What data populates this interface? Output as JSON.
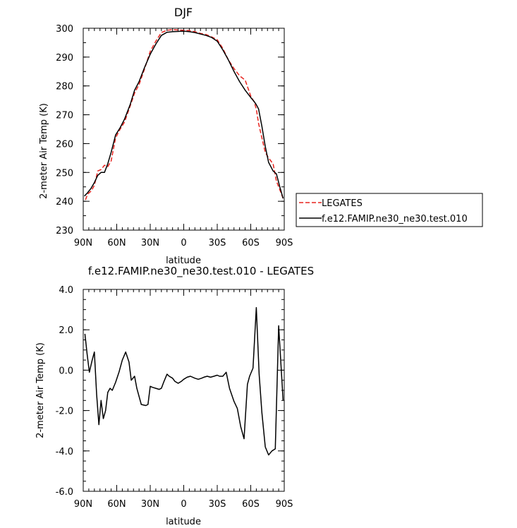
{
  "chart_data": [
    {
      "type": "line",
      "title": "DJF",
      "xlabel": "latitude",
      "ylabel": "2-meter Air Temp (K)",
      "xlim": [
        90,
        -90
      ],
      "ylim": [
        230,
        300
      ],
      "xticks": [
        {
          "v": 90,
          "label": "90N"
        },
        {
          "v": 60,
          "label": "60N"
        },
        {
          "v": 30,
          "label": "30N"
        },
        {
          "v": 0,
          "label": "0"
        },
        {
          "v": -30,
          "label": "30S"
        },
        {
          "v": -60,
          "label": "60S"
        },
        {
          "v": -90,
          "label": "90S"
        }
      ],
      "yticks": [
        "230",
        "240",
        "250",
        "260",
        "270",
        "280",
        "290",
        "300"
      ],
      "legend": {
        "placement": "right",
        "entries": [
          "LEGATES",
          "f.e12.FAMIP.ne30_ne30.test.010"
        ]
      },
      "series": [
        {
          "name": "LEGATES",
          "color": "#e8231e",
          "dash": "dashed",
          "x": [
            88,
            86,
            83,
            80,
            77,
            74,
            71,
            68,
            65,
            61,
            57,
            53,
            48,
            44,
            40,
            35,
            30,
            25,
            20,
            15,
            10,
            5,
            0,
            -5,
            -10,
            -15,
            -20,
            -25,
            -30,
            -35,
            -40,
            -45,
            -50,
            -55,
            -60,
            -63,
            -65,
            -67,
            -70,
            -73,
            -76,
            -80,
            -83,
            -86,
            -89
          ],
          "y": [
            240.5,
            242.5,
            243.5,
            245.5,
            250.5,
            251,
            252.5,
            252,
            254,
            262,
            265,
            267.5,
            273,
            277.5,
            280.5,
            286,
            292,
            295.5,
            298.5,
            299.3,
            299.5,
            299.4,
            299.3,
            299.2,
            298.8,
            298.2,
            297.8,
            297,
            296,
            293,
            289,
            286,
            283.5,
            282,
            276.5,
            274.5,
            272,
            267,
            262,
            257,
            255,
            253,
            247,
            244,
            241
          ]
        },
        {
          "name": "f.e12.FAMIP.ne30_ne30.test.010",
          "color": "#000000",
          "dash": "solid",
          "x": [
            89,
            86,
            83,
            80,
            77,
            74,
            71,
            68,
            65,
            61,
            57,
            53,
            48,
            44,
            40,
            35,
            30,
            25,
            20,
            15,
            10,
            5,
            0,
            -5,
            -10,
            -15,
            -20,
            -25,
            -30,
            -35,
            -40,
            -45,
            -50,
            -55,
            -60,
            -63,
            -65,
            -67,
            -70,
            -73,
            -76,
            -80,
            -83,
            -86,
            -89
          ],
          "y": [
            241.8,
            243,
            244.5,
            246.5,
            249,
            250,
            250,
            253,
            257,
            263,
            265.5,
            268.5,
            273.5,
            278.5,
            281.5,
            286.5,
            291,
            294.5,
            297.5,
            298.6,
            298.8,
            298.9,
            299,
            298.8,
            298.5,
            298,
            297.5,
            296.8,
            295.5,
            292.5,
            289,
            285,
            281.5,
            278.5,
            276,
            274.6,
            273.5,
            272,
            266,
            259,
            253.5,
            250.5,
            249.5,
            245,
            241
          ]
        }
      ]
    },
    {
      "type": "line",
      "title": "f.e12.FAMIP.ne30_ne30.test.010 - LEGATES",
      "xlabel": "latitude",
      "ylabel": "2-meter Air Temp (K)",
      "xlim": [
        90,
        -90
      ],
      "ylim": [
        -6,
        4
      ],
      "xticks": [
        {
          "v": 90,
          "label": "90N"
        },
        {
          "v": 60,
          "label": "60N"
        },
        {
          "v": 30,
          "label": "30N"
        },
        {
          "v": 0,
          "label": "0"
        },
        {
          "v": -30,
          "label": "30S"
        },
        {
          "v": -60,
          "label": "60S"
        },
        {
          "v": -90,
          "label": "90S"
        }
      ],
      "yticks": [
        "-6.0",
        "-4.0",
        "-2.0",
        "0.0",
        "2.0",
        "4.0"
      ],
      "series": [
        {
          "color": "#000000",
          "x": [
            88.5,
            86.5,
            84.5,
            82,
            80,
            78,
            76,
            74,
            72,
            70,
            68,
            66,
            64,
            61,
            58,
            55,
            52,
            49,
            47,
            44,
            42,
            38,
            34,
            32,
            30,
            28,
            25,
            22,
            20,
            18,
            15,
            13,
            10,
            8,
            5,
            2,
            0,
            -3,
            -6,
            -10,
            -13,
            -16,
            -18,
            -21,
            -24,
            -27,
            -30,
            -32,
            -35,
            -38,
            -41,
            -45,
            -48,
            -51,
            -54,
            -57,
            -59,
            -62,
            -65,
            -67.5,
            -70,
            -73,
            -76,
            -79,
            -82,
            -85,
            -87,
            -89
          ],
          "y": [
            1.8,
            0.8,
            -0.1,
            0.5,
            0.9,
            -1.2,
            -2.7,
            -1.5,
            -2.4,
            -2.0,
            -1.1,
            -0.9,
            -1.0,
            -0.6,
            -0.1,
            0.5,
            0.9,
            0.4,
            -0.5,
            -0.3,
            -0.9,
            -1.7,
            -1.75,
            -1.7,
            -0.8,
            -0.85,
            -0.9,
            -0.95,
            -0.9,
            -0.6,
            -0.2,
            -0.3,
            -0.4,
            -0.55,
            -0.65,
            -0.55,
            -0.45,
            -0.35,
            -0.3,
            -0.4,
            -0.45,
            -0.4,
            -0.35,
            -0.3,
            -0.35,
            -0.3,
            -0.25,
            -0.3,
            -0.3,
            -0.1,
            -0.9,
            -1.55,
            -1.9,
            -2.8,
            -3.4,
            -0.7,
            -0.3,
            0.1,
            3.1,
            -0.2,
            -2.1,
            -3.8,
            -4.2,
            -4.0,
            -3.9,
            2.2,
            0.3,
            -1.5
          ]
        }
      ]
    }
  ]
}
